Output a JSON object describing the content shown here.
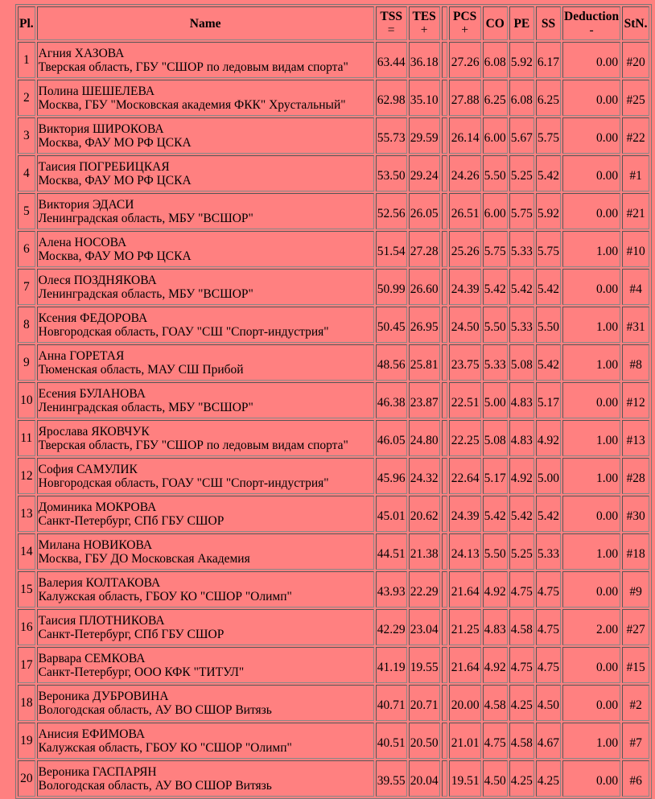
{
  "headers": {
    "pl": "Pl.",
    "name": "Name",
    "tss": "TSS",
    "tss_sub": "=",
    "tes": "TES",
    "tes_sub": "+",
    "pcs": "PCS",
    "pcs_sub": "+",
    "co": "CO",
    "pe": "PE",
    "ss": "SS",
    "ded": "Deduction",
    "ded_sub": "-",
    "stn": "StN."
  },
  "rows": [
    {
      "pl": "1",
      "name": "Агния ХАЗОВА",
      "club": "Тверская область, ГБУ \"СШОР по ледовым видам спорта\"",
      "tss": "63.44",
      "tes": "36.18",
      "pcs": "27.26",
      "co": "6.08",
      "pe": "5.92",
      "ss": "6.17",
      "ded": "0.00",
      "stn": "#20"
    },
    {
      "pl": "2",
      "name": "Полина ШЕШЕЛЕВА",
      "club": "Москва, ГБУ \"Московская академия ФКК\" Хрустальный\"",
      "tss": "62.98",
      "tes": "35.10",
      "pcs": "27.88",
      "co": "6.25",
      "pe": "6.08",
      "ss": "6.25",
      "ded": "0.00",
      "stn": "#25"
    },
    {
      "pl": "3",
      "name": "Виктория ШИРОКОВА",
      "club": "Москва, ФАУ МО РФ ЦСКА",
      "tss": "55.73",
      "tes": "29.59",
      "pcs": "26.14",
      "co": "6.00",
      "pe": "5.67",
      "ss": "5.75",
      "ded": "0.00",
      "stn": "#22"
    },
    {
      "pl": "4",
      "name": "Таисия ПОГРЕБИЦКАЯ",
      "club": "Москва, ФАУ МО РФ ЦСКА",
      "tss": "53.50",
      "tes": "29.24",
      "pcs": "24.26",
      "co": "5.50",
      "pe": "5.25",
      "ss": "5.42",
      "ded": "0.00",
      "stn": "#1"
    },
    {
      "pl": "5",
      "name": "Виктория ЭДАСИ",
      "club": "Ленинградская область, МБУ \"ВСШОР\"",
      "tss": "52.56",
      "tes": "26.05",
      "pcs": "26.51",
      "co": "6.00",
      "pe": "5.75",
      "ss": "5.92",
      "ded": "0.00",
      "stn": "#21"
    },
    {
      "pl": "6",
      "name": "Алена НОСОВА",
      "club": "Москва, ФАУ МО РФ ЦСКА",
      "tss": "51.54",
      "tes": "27.28",
      "pcs": "25.26",
      "co": "5.75",
      "pe": "5.33",
      "ss": "5.75",
      "ded": "1.00",
      "stn": "#10"
    },
    {
      "pl": "7",
      "name": "Олеся ПОЗДНЯКОВА",
      "club": "Ленинградская область, МБУ \"ВСШОР\"",
      "tss": "50.99",
      "tes": "26.60",
      "pcs": "24.39",
      "co": "5.42",
      "pe": "5.42",
      "ss": "5.42",
      "ded": "0.00",
      "stn": "#4"
    },
    {
      "pl": "8",
      "name": "Ксения ФЕДОРОВА",
      "club": "Новгородская область, ГОАУ \"СШ \"Спорт-индустрия\"",
      "tss": "50.45",
      "tes": "26.95",
      "pcs": "24.50",
      "co": "5.50",
      "pe": "5.33",
      "ss": "5.50",
      "ded": "1.00",
      "stn": "#31"
    },
    {
      "pl": "9",
      "name": "Анна ГОРЕТАЯ",
      "club": "Тюменская область, МАУ СШ Прибой",
      "tss": "48.56",
      "tes": "25.81",
      "pcs": "23.75",
      "co": "5.33",
      "pe": "5.08",
      "ss": "5.42",
      "ded": "1.00",
      "stn": "#8"
    },
    {
      "pl": "10",
      "name": "Есения БУЛАНОВА",
      "club": "Ленинградская область, МБУ \"ВСШОР\"",
      "tss": "46.38",
      "tes": "23.87",
      "pcs": "22.51",
      "co": "5.00",
      "pe": "4.83",
      "ss": "5.17",
      "ded": "0.00",
      "stn": "#12"
    },
    {
      "pl": "11",
      "name": "Ярослава ЯКОВЧУК",
      "club": "Тверская область, ГБУ \"СШОР по ледовым видам спорта\"",
      "tss": "46.05",
      "tes": "24.80",
      "pcs": "22.25",
      "co": "5.08",
      "pe": "4.83",
      "ss": "4.92",
      "ded": "1.00",
      "stn": "#13"
    },
    {
      "pl": "12",
      "name": "София САМУЛИК",
      "club": "Новгородская область, ГОАУ \"СШ \"Спорт-индустрия\"",
      "tss": "45.96",
      "tes": "24.32",
      "pcs": "22.64",
      "co": "5.17",
      "pe": "4.92",
      "ss": "5.00",
      "ded": "1.00",
      "stn": "#28"
    },
    {
      "pl": "13",
      "name": "Доминика МОКРОВА",
      "club": "Санкт-Петербург, СПб ГБУ СШОР",
      "tss": "45.01",
      "tes": "20.62",
      "pcs": "24.39",
      "co": "5.42",
      "pe": "5.42",
      "ss": "5.42",
      "ded": "0.00",
      "stn": "#30"
    },
    {
      "pl": "14",
      "name": "Милана НОВИКОВА",
      "club": "Москва, ГБУ ДО Московская Академия",
      "tss": "44.51",
      "tes": "21.38",
      "pcs": "24.13",
      "co": "5.50",
      "pe": "5.25",
      "ss": "5.33",
      "ded": "1.00",
      "stn": "#18"
    },
    {
      "pl": "15",
      "name": "Валерия КОЛТАКОВА",
      "club": "Калужская область, ГБОУ КО \"СШОР \"Олимп\"",
      "tss": "43.93",
      "tes": "22.29",
      "pcs": "21.64",
      "co": "4.92",
      "pe": "4.75",
      "ss": "4.75",
      "ded": "0.00",
      "stn": "#9"
    },
    {
      "pl": "16",
      "name": "Таисия ПЛОТНИКОВА",
      "club": "Санкт-Петербург, СПб ГБУ СШОР",
      "tss": "42.29",
      "tes": "23.04",
      "pcs": "21.25",
      "co": "4.83",
      "pe": "4.58",
      "ss": "4.75",
      "ded": "2.00",
      "stn": "#27"
    },
    {
      "pl": "17",
      "name": "Варвара СЕМКОВА",
      "club": "Санкт-Петербург, ООО КФК \"ТИТУЛ\"",
      "tss": "41.19",
      "tes": "19.55",
      "pcs": "21.64",
      "co": "4.92",
      "pe": "4.75",
      "ss": "4.75",
      "ded": "0.00",
      "stn": "#15"
    },
    {
      "pl": "18",
      "name": "Вероника ДУБРОВИНА",
      "club": "Вологодская область, АУ ВО СШОР Витязь",
      "tss": "40.71",
      "tes": "20.71",
      "pcs": "20.00",
      "co": "4.58",
      "pe": "4.25",
      "ss": "4.50",
      "ded": "0.00",
      "stn": "#2"
    },
    {
      "pl": "19",
      "name": "Анисия ЕФИМОВА",
      "club": "Калужская область, ГБОУ КО \"СШОР \"Олимп\"",
      "tss": "40.51",
      "tes": "20.50",
      "pcs": "21.01",
      "co": "4.75",
      "pe": "4.58",
      "ss": "4.67",
      "ded": "1.00",
      "stn": "#7"
    },
    {
      "pl": "20",
      "name": "Вероника ГАСПАРЯН",
      "club": "Вологодская область, АУ ВО СШОР Витязь",
      "tss": "39.55",
      "tes": "20.04",
      "pcs": "19.51",
      "co": "4.50",
      "pe": "4.25",
      "ss": "4.25",
      "ded": "0.00",
      "stn": "#6"
    }
  ]
}
